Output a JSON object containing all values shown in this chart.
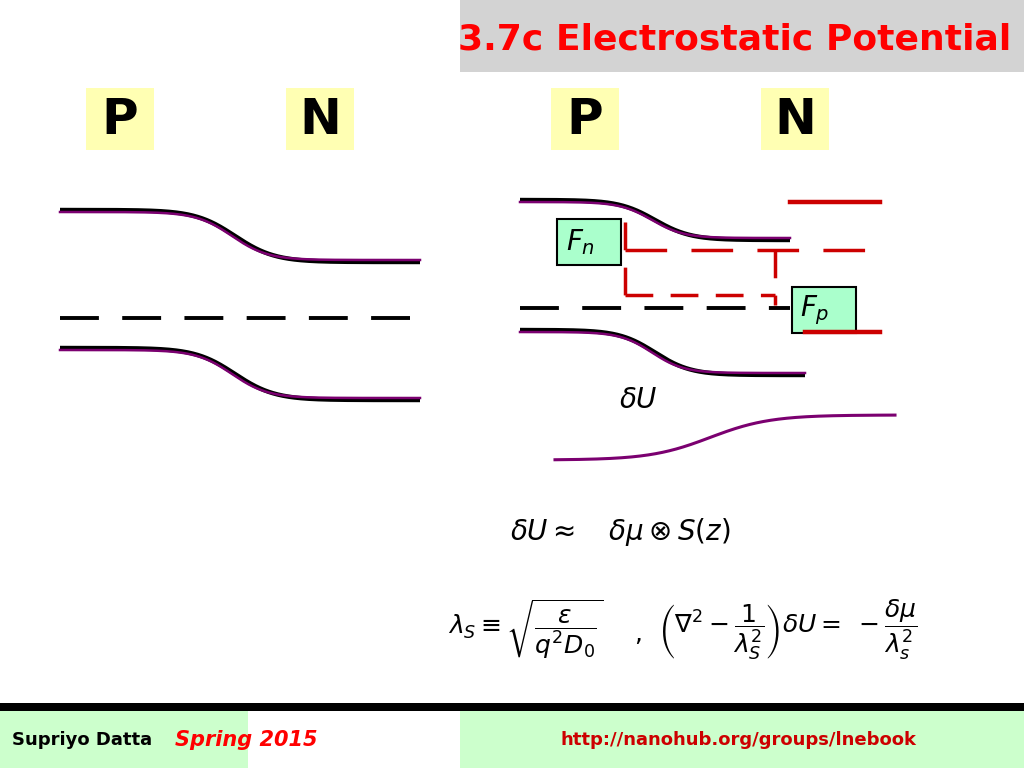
{
  "title": "3.7c Electrostatic Potential",
  "title_color": "#ff0000",
  "title_bg": "#d3d3d3",
  "title_fontsize": 26,
  "bg_color": "#ffffff",
  "footer_bg": "#ccffcc",
  "footer_text_left": "Supriyo Datta",
  "footer_text_mid": "Spring 2015",
  "footer_text_right": "http://nanohub.org/groups/lnebook",
  "footer_color_mid": "#ff0000",
  "footer_color_side": "#cc0000",
  "curve_color_main": "#7B0070",
  "curve_color_red": "#cc0000",
  "line_color_black": "#000000"
}
